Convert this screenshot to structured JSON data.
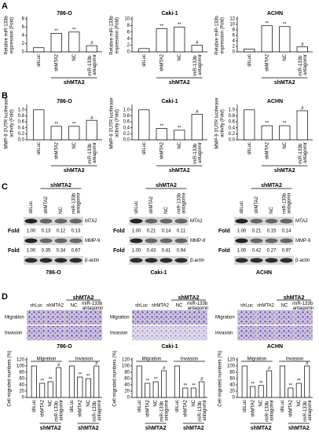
{
  "panel_labels": [
    "A",
    "B",
    "C",
    "D"
  ],
  "chart_data": [
    {
      "type": "bar",
      "title": "786-O",
      "ylabel": [
        "Relative miR-133b",
        "expression (Fold)"
      ],
      "categories": [
        "shLuc",
        "shMTA2",
        "NC",
        "miR-133b antagomir"
      ],
      "values": [
        1,
        4.5,
        4.8,
        1.5
      ],
      "annotations": [
        null,
        "**",
        "**",
        "#"
      ],
      "group_label": "shMTA2",
      "color": "#ffffff",
      "ylim": [
        0,
        8
      ],
      "yticks": [
        0,
        2,
        4,
        6,
        8
      ]
    },
    {
      "type": "bar",
      "title": "Caki-1",
      "ylabel": [
        "Relative miR-133b",
        "expression (Fold)"
      ],
      "categories": [
        "shLuc",
        "shMTA2",
        "NC",
        "miR-133b antagomir"
      ],
      "values": [
        1,
        7,
        7.5,
        2
      ],
      "annotations": [
        null,
        "**",
        "**",
        "#"
      ],
      "group_label": "shMTA2",
      "color": "#ffffff",
      "ylim": [
        0,
        10
      ],
      "yticks": [
        0,
        2,
        4,
        6,
        8,
        10
      ]
    },
    {
      "type": "bar",
      "title": "ACHN",
      "ylabel": [
        "Relative miR-133b",
        "expression (Fold)"
      ],
      "categories": [
        "shLuc",
        "shMTA2",
        "NC",
        "miR-133b antagomir"
      ],
      "values": [
        1,
        9.5,
        9.2,
        1.8
      ],
      "annotations": [
        null,
        "**",
        "**",
        "#"
      ],
      "group_label": "shMTA2",
      "color": "#ffffff",
      "ylim": [
        0,
        12
      ],
      "yticks": [
        0,
        2,
        4,
        6,
        8,
        10,
        12
      ]
    },
    {
      "type": "bar",
      "title": "786-O",
      "ylabel": [
        "MMP-9 3'UTR luciferase",
        "activity (Fold)"
      ],
      "categories": [
        "shLuc",
        "shMTA2",
        "NC",
        "miR-133b antagomir"
      ],
      "values": [
        1,
        0.45,
        0.45,
        0.65
      ],
      "annotations": [
        null,
        "**",
        "**",
        "#"
      ],
      "group_label": "shMTA2",
      "color": "#ffffff",
      "ylim": [
        0,
        1.1
      ],
      "yticks": [
        {
          "value": 0,
          "label": "0.0"
        },
        0.2,
        0.4,
        0.6,
        0.8,
        {
          "value": 1,
          "label": "1.0"
        }
      ]
    },
    {
      "type": "bar",
      "title": "Caki-1",
      "ylabel": [
        "MMP-9 3'UTR luciferase",
        "activity (Fold)"
      ],
      "categories": [
        "shLuc",
        "shMTA2",
        "NC",
        "miR-133b antagomir"
      ],
      "values": [
        1,
        0.38,
        0.32,
        0.85
      ],
      "annotations": [
        null,
        "**",
        "**",
        "#"
      ],
      "group_label": "shMTA2",
      "color": "#ffffff",
      "ylim": [
        0,
        1.1
      ],
      "yticks": [
        {
          "value": 0,
          "label": "0.0"
        },
        0.2,
        0.4,
        0.6,
        0.8,
        {
          "value": 1,
          "label": "1.0"
        }
      ]
    },
    {
      "type": "bar",
      "title": "ACHN",
      "ylabel": [
        "MMP-9 3'UTR luciferase",
        "activity (Fold)"
      ],
      "categories": [
        "shLuc",
        "shMTA2",
        "NC",
        "miR-133b antagomir"
      ],
      "values": [
        1,
        0.47,
        0.47,
        0.97
      ],
      "annotations": [
        null,
        "**",
        "**",
        "#"
      ],
      "group_label": "shMTA2",
      "color": "#ffffff",
      "ylim": [
        0,
        1.1
      ],
      "yticks": [
        {
          "value": 0,
          "label": "0.0"
        },
        0.2,
        0.4,
        0.6,
        0.8,
        {
          "value": 1,
          "label": "1.0"
        }
      ]
    },
    {
      "type": "grouped_bar",
      "ylabel": "Cell migrated numbers (%)",
      "categories": [
        "shLuc",
        "shMTA2",
        "NC",
        "miR-133b antagomir"
      ],
      "series": [
        {
          "name": "Migration",
          "color": "#ffffff",
          "values": [
            100,
            45,
            50,
            95
          ],
          "annotations": [
            null,
            "**",
            "**",
            "#"
          ]
        },
        {
          "name": "Invasion",
          "color": "#ffffff",
          "values": [
            100,
            65,
            60,
            100
          ],
          "annotations": [
            null,
            "**",
            "**",
            "#"
          ]
        }
      ],
      "group_labels": [
        "shMTA2",
        "shMTA2"
      ],
      "ylim": [
        0,
        120
      ],
      "yticks": [
        0,
        20,
        40,
        60,
        80,
        100,
        120
      ]
    },
    {
      "type": "grouped_bar",
      "ylabel": "Cell migrated numbers (%)",
      "categories": [
        "shLuc",
        "shMTA2",
        "NC",
        "miR-133b antagomir"
      ],
      "series": [
        {
          "name": "Migration",
          "color": "#ffffff",
          "values": [
            100,
            45,
            50,
            85
          ],
          "annotations": [
            null,
            "**",
            "**",
            "#"
          ]
        },
        {
          "name": "Invasion",
          "color": "#ffffff",
          "values": [
            100,
            30,
            30,
            50
          ],
          "annotations": [
            null,
            "**",
            "**",
            "#"
          ]
        }
      ],
      "group_labels": [
        "shMTA2",
        "shMTA2"
      ],
      "ylim": [
        0,
        120
      ],
      "yticks": [
        0,
        20,
        40,
        60,
        80,
        100,
        120
      ]
    },
    {
      "type": "grouped_bar",
      "ylabel": "Cell migrated numbers (%)",
      "categories": [
        "shLuc",
        "shMTA2",
        "NC",
        "miR-133b antagomir"
      ],
      "series": [
        {
          "name": "Migration",
          "color": "#ffffff",
          "values": [
            100,
            35,
            38,
            85
          ],
          "annotations": [
            null,
            "**",
            "**",
            "#"
          ]
        },
        {
          "name": "Invasion",
          "color": "#ffffff",
          "values": [
            100,
            30,
            45,
            100
          ],
          "annotations": [
            null,
            "**",
            "**",
            "#"
          ]
        }
      ],
      "group_labels": [
        "shMTA2",
        "shMTA2"
      ],
      "ylim": [
        0,
        120
      ],
      "yticks": [
        0,
        20,
        40,
        60,
        80,
        100,
        120
      ]
    }
  ],
  "blots": [
    {
      "cell_line": "786-O",
      "group": "shMTA2",
      "lanes": [
        "shLuc",
        "shMTA2",
        "NC",
        "miR-133b antagomir"
      ],
      "proteins": [
        "MTA2",
        "MMP-9",
        "β-actin"
      ],
      "fold_label": "Fold",
      "folds": [
        [
          "1.00",
          "0.13",
          "0.12",
          "0.13"
        ],
        [
          "1.00",
          "0.35",
          "0.34",
          "0.67"
        ]
      ]
    },
    {
      "cell_line": "Caki-1",
      "group": "shMTA2",
      "lanes": [
        "shLuc",
        "shMTA2",
        "NC",
        "miR-133b antagomir"
      ],
      "proteins": [
        "MTA2",
        "MMP-9",
        "β-actin"
      ],
      "fold_label": "Fold",
      "folds": [
        [
          "1.00",
          "0.21",
          "0.14",
          "0.11"
        ],
        [
          "1.00",
          "0.43",
          "0.41",
          "0.94"
        ]
      ]
    },
    {
      "cell_line": "ACHN",
      "group": "shMTA2",
      "lanes": [
        "shLuc",
        "shMTA2",
        "NC",
        "miR-133b antagomir"
      ],
      "proteins": [
        "MTA2",
        "MMP-9",
        "β-actin"
      ],
      "fold_label": "Fold",
      "folds": [
        [
          "1.00",
          "0.21",
          "0.15",
          "0.14"
        ],
        [
          "1.00",
          "0.42",
          "0.27",
          "0.97"
        ]
      ]
    }
  ],
  "micrographs": [
    {
      "cell_line": "786-O",
      "group": "shMTA2",
      "lanes": [
        "shLuc",
        "shMTA2",
        "NC",
        "miR-133b antagomir"
      ],
      "rows": [
        "Migration",
        "Invasion"
      ]
    },
    {
      "cell_line": "Caki-1",
      "group": "shMTA2",
      "lanes": [
        "shLuc",
        "shMTA2",
        "NC",
        "miR-133b antagomir"
      ],
      "rows": [
        "Migration",
        "Invasion"
      ]
    },
    {
      "cell_line": "ACHN",
      "group": "shMTA2",
      "lanes": [
        "shLuc",
        "shMTA2",
        "NC",
        "miR-133b antagomir"
      ],
      "rows": [
        "Migration",
        "Invasion"
      ]
    }
  ]
}
